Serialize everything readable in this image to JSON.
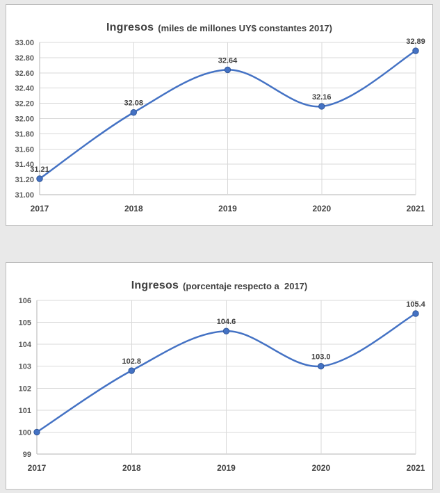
{
  "page": {
    "background": "#e9e9e9",
    "panel_border": "#bdbdbd",
    "grid_color": "#d9d9d9",
    "axis_color": "#b3b3b3"
  },
  "chart_data": [
    {
      "type": "line",
      "title": "Ingresos",
      "subtitle": "(miles de millones UY$ constantes 2017)",
      "categories": [
        "2017",
        "2018",
        "2019",
        "2020",
        "2021"
      ],
      "values": [
        31.21,
        32.08,
        32.64,
        32.16,
        32.89
      ],
      "point_labels": [
        "31.21",
        "32.08",
        "32.64",
        "32.16",
        "32.89"
      ],
      "ylim": [
        31.0,
        33.0
      ],
      "ytick_step": 0.2,
      "y_decimals": 2,
      "xlabel": "",
      "ylabel": "",
      "grid": true,
      "smooth": true,
      "marker": "circle",
      "legend": "none",
      "color": "#4472c4",
      "marker_stroke": "#2f5597"
    },
    {
      "type": "line",
      "title": "Ingresos",
      "subtitle": "(porcentaje respecto a  2017)",
      "categories": [
        "2017",
        "2018",
        "2019",
        "2020",
        "2021"
      ],
      "values": [
        100,
        102.8,
        104.6,
        103.0,
        105.4
      ],
      "point_labels": [
        null,
        "102.8",
        "104.6",
        "103.0",
        "105.4"
      ],
      "ylim": [
        99,
        106
      ],
      "ytick_step": 1,
      "y_decimals": 0,
      "xlabel": "",
      "ylabel": "",
      "grid": true,
      "smooth": true,
      "marker": "circle",
      "legend": "none",
      "color": "#4472c4",
      "marker_stroke": "#2f5597"
    }
  ]
}
